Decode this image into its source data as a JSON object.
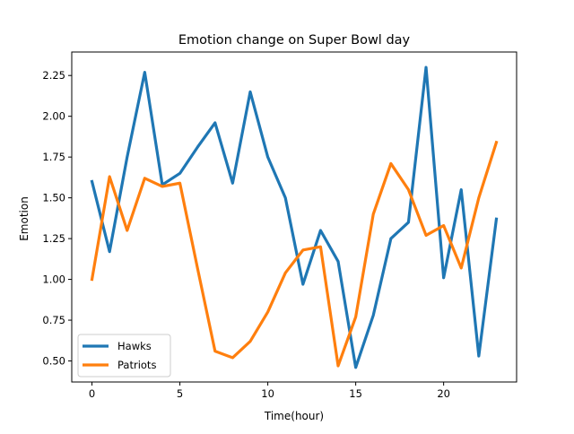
{
  "chart_data": {
    "type": "line",
    "title": "Emotion change on Super Bowl day",
    "xlabel": "Time(hour)",
    "ylabel": "Emotion",
    "xlim": [
      -1.15,
      24.15
    ],
    "ylim": [
      0.371,
      2.394
    ],
    "xticks": [
      0,
      5,
      10,
      15,
      20
    ],
    "xtick_labels": [
      "0",
      "5",
      "10",
      "15",
      "20"
    ],
    "yticks": [
      0.5,
      0.75,
      1.0,
      1.25,
      1.5,
      1.75,
      2.0,
      2.25
    ],
    "ytick_labels": [
      "0.50",
      "0.75",
      "1.00",
      "1.25",
      "1.50",
      "1.75",
      "2.00",
      "2.25"
    ],
    "grid": false,
    "legend_position": "lower-left",
    "x": [
      0,
      1,
      2,
      3,
      4,
      5,
      6,
      7,
      8,
      9,
      10,
      11,
      12,
      13,
      14,
      15,
      16,
      17,
      18,
      19,
      20,
      21,
      22,
      23
    ],
    "series": [
      {
        "name": "Hawks",
        "color": "#1f77b4",
        "values": [
          1.6,
          1.17,
          1.75,
          2.27,
          1.58,
          1.65,
          1.81,
          1.96,
          1.59,
          2.15,
          1.75,
          1.5,
          0.97,
          1.3,
          1.11,
          0.46,
          0.78,
          1.25,
          1.35,
          2.3,
          1.01,
          1.55,
          0.53,
          1.37
        ]
      },
      {
        "name": "Patriots",
        "color": "#ff7f0e",
        "values": [
          1.0,
          1.63,
          1.3,
          1.62,
          1.57,
          1.59,
          1.07,
          0.56,
          0.52,
          0.62,
          0.8,
          1.04,
          1.18,
          1.2,
          0.47,
          0.77,
          1.4,
          1.71,
          1.55,
          1.27,
          1.33,
          1.07,
          1.5,
          1.84
        ]
      }
    ]
  }
}
